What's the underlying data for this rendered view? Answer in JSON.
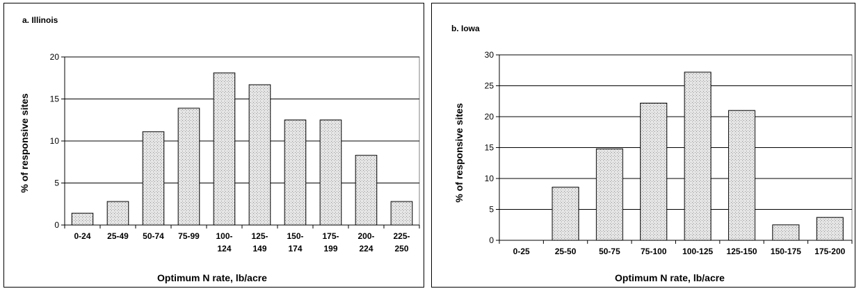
{
  "chart_data": [
    {
      "type": "bar",
      "title": "a. Illinois",
      "xlabel": "Optimum N rate, lb/acre",
      "ylabel": "% of responsive sites",
      "ylim": [
        0,
        20
      ],
      "yticks": [
        "0",
        "5",
        "10",
        "15",
        "20"
      ],
      "grid": true,
      "categories": [
        [
          "0-24"
        ],
        [
          "25-49"
        ],
        [
          "50-74"
        ],
        [
          "75-99"
        ],
        [
          "100-",
          "124"
        ],
        [
          "125-",
          "149"
        ],
        [
          "150-",
          "174"
        ],
        [
          "175-",
          "199"
        ],
        [
          "200-",
          "224"
        ],
        [
          "225-",
          "250"
        ]
      ],
      "values": [
        1.4,
        2.8,
        11.1,
        13.9,
        18.1,
        16.7,
        12.5,
        12.5,
        8.3,
        2.8
      ]
    },
    {
      "type": "bar",
      "title": "b. Iowa",
      "xlabel": "Optimum N rate, lb/acre",
      "ylabel": "% of responsive sites",
      "ylim": [
        0,
        30
      ],
      "yticks": [
        "0",
        "5",
        "10",
        "15",
        "20",
        "25",
        "30"
      ],
      "grid": true,
      "categories": [
        [
          "0-25"
        ],
        [
          "25-50"
        ],
        [
          "50-75"
        ],
        [
          "75-100"
        ],
        [
          "100-125"
        ],
        [
          "125-150"
        ],
        [
          "150-175"
        ],
        [
          "175-200"
        ]
      ],
      "values": [
        0,
        8.6,
        14.8,
        22.2,
        27.2,
        21.0,
        2.5,
        3.7
      ]
    }
  ]
}
